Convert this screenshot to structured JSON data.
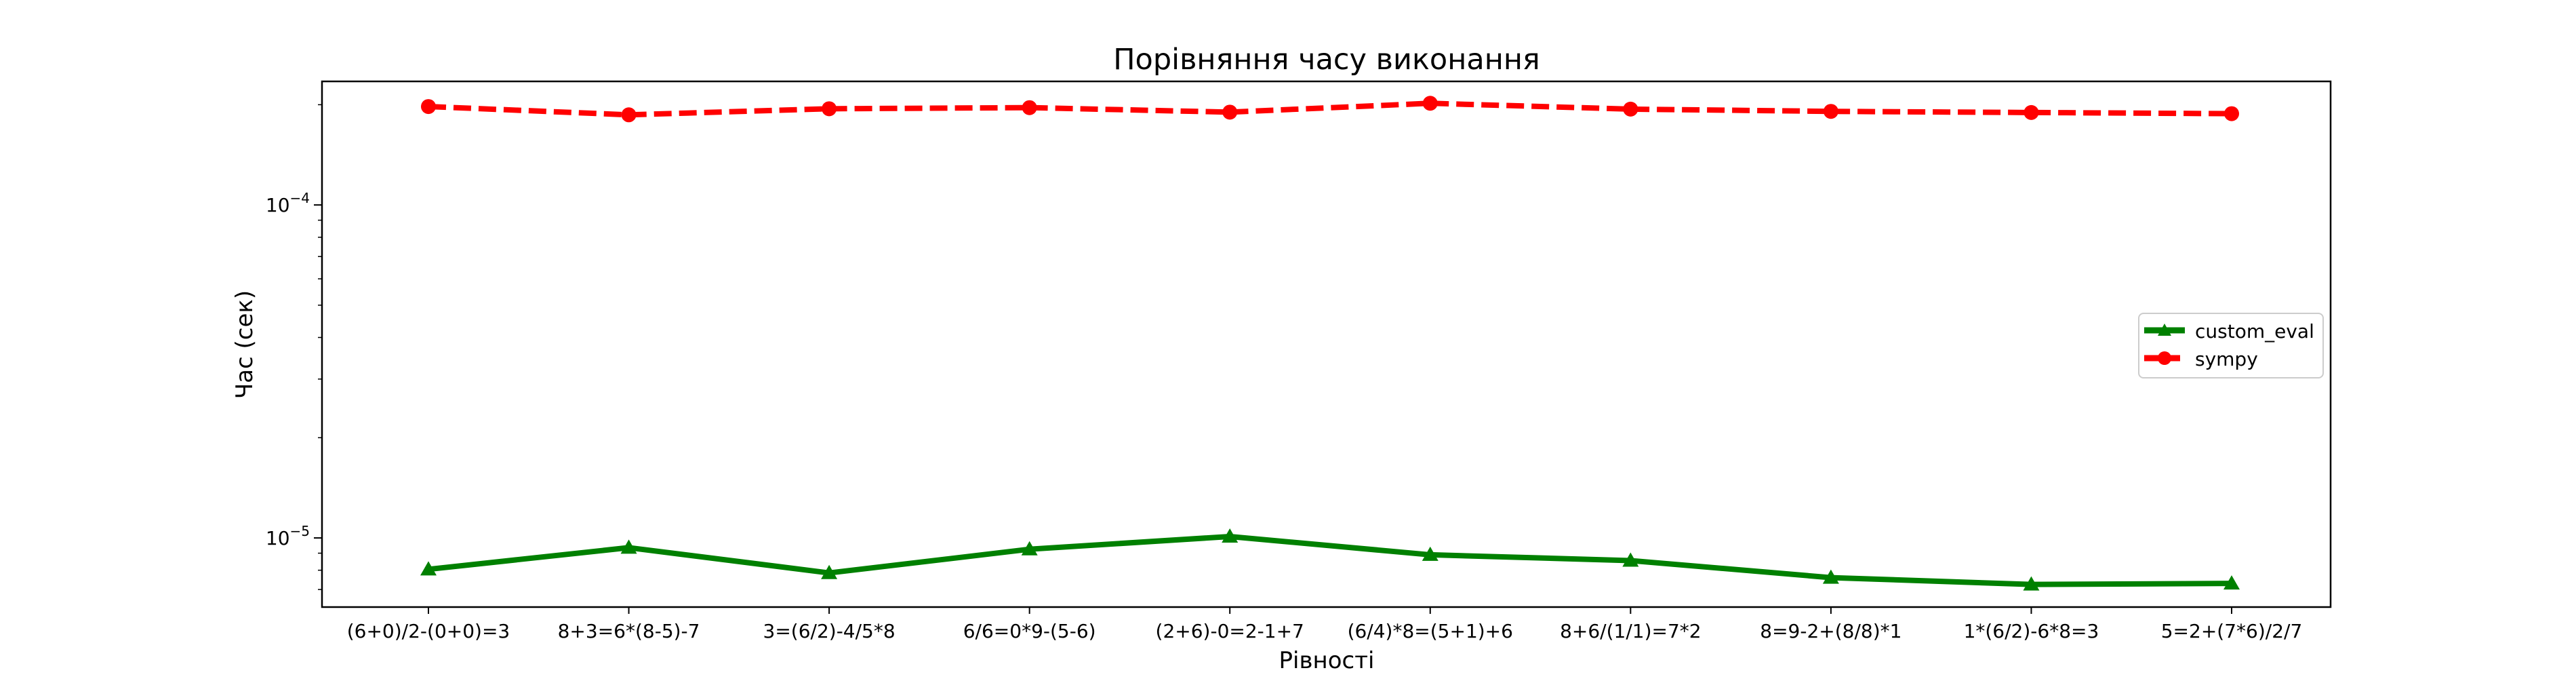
{
  "chart_data": {
    "type": "line",
    "title": "Порівняння часу виконання",
    "xlabel": "Рівності",
    "ylabel": "Час (сек)",
    "yscale": "log",
    "ylim": [
      6.2e-06,
      0.000235
    ],
    "grid": false,
    "legend_position": "center-right",
    "categories": [
      "(6+0)/2-(0+0)=3",
      "8+3=6*(8-5)-7",
      "3=(6/2)-4/5*8",
      "6/6=0*9-(5-6)",
      "(2+6)-0=2-1+7",
      "(6/4)*8=(5+1)+6",
      "8+6/(1/1)=7*2",
      "8=9-2+(8/8)*1",
      "1*(6/2)-6*8=3",
      "5=2+(7*6)/2/7"
    ],
    "y_major_ticks": [
      {
        "value": 0.0001,
        "base": "10",
        "exp": "−4"
      },
      {
        "value": 1e-05,
        "base": "10",
        "exp": "−5"
      }
    ],
    "series": [
      {
        "name": "custom_eval",
        "color": "#008000",
        "linestyle": "solid",
        "marker": "triangle",
        "values": [
          8.05e-06,
          9.35e-06,
          7.85e-06,
          9.25e-06,
          1.01e-05,
          8.9e-06,
          8.55e-06,
          7.6e-06,
          7.25e-06,
          7.3e-06
        ]
      },
      {
        "name": "sympy",
        "color": "#ff0000",
        "linestyle": "dashed",
        "marker": "circle",
        "values": [
          0.0001975,
          0.0001865,
          0.0001945,
          0.000196,
          0.00019,
          0.000202,
          0.000194,
          0.000191,
          0.0001895,
          0.000188
        ]
      }
    ]
  }
}
